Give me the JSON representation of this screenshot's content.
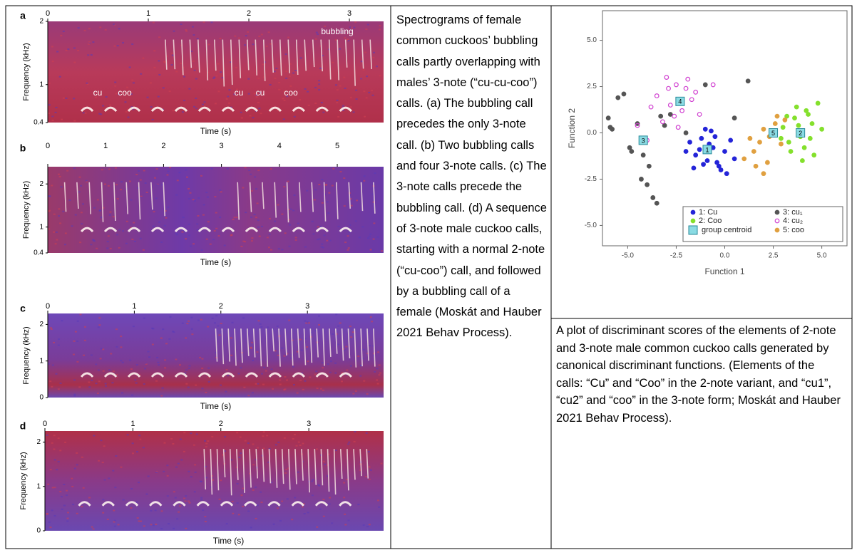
{
  "panels": [
    {
      "label": "a",
      "ylabel": "Frequency (kHz)",
      "xlabel": "Time (s)",
      "xlim": [
        0,
        3.34
      ],
      "xticks": [
        0,
        1,
        2,
        3
      ],
      "ylim": [
        0.4,
        2
      ],
      "yticks": [
        2,
        1,
        0.4
      ],
      "annotations": [
        "cu",
        "coo",
        "cu",
        "cu",
        "coo",
        "bubbling"
      ]
    },
    {
      "label": "b",
      "ylabel": "Frequency (kHz)",
      "xlabel": "Time (s)",
      "xlim": [
        0,
        5.8
      ],
      "xticks": [
        0,
        1,
        2,
        3,
        4,
        5
      ],
      "ylim": [
        0.4,
        2.4
      ],
      "yticks": [
        2,
        1,
        0.4
      ]
    },
    {
      "label": "c",
      "ylabel": "Frequency (kHz)",
      "xlabel": "Time (s)",
      "xlim": [
        0,
        3.88
      ],
      "xticks": [
        0,
        1,
        2,
        3
      ],
      "ylim": [
        0,
        2.3
      ],
      "yticks": [
        2,
        1,
        0
      ]
    },
    {
      "label": "d",
      "ylabel": "Frequency (kHz)",
      "xlabel": "Time (s)",
      "xlim": [
        0,
        3.85
      ],
      "xticks": [
        0,
        1,
        2,
        3
      ],
      "ylim": [
        0,
        2.25
      ],
      "yticks": [
        2,
        1,
        0
      ]
    }
  ],
  "caption_left": "Spectrograms of female common cuckoos’ bubbling calls partly overlapping with males’ 3-note (“cu-cu-coo”) calls. (a) The bubbling call precedes the only 3-note call. (b) Two bubbling calls and four 3-note calls. (c) The 3-note calls precede the bubbling call. (d) A sequence of 3-note male cuckoo calls, starting with a normal 2-note (“cu-coo”) call, and followed by a bubbling call of a female (Moskát and Hauber 2021 Behav Process).",
  "scatter": {
    "type": "scatter",
    "xlabel": "Function 1",
    "ylabel": "Function 2",
    "xlim": [
      -6.3,
      6.3
    ],
    "ylim": [
      -6.1,
      6.6
    ],
    "xticks": [
      {
        "value": -5,
        "label": "-5.0"
      },
      -2.5,
      {
        "value": 0,
        "label": "0.0"
      },
      2.5,
      {
        "value": 5,
        "label": "5.0"
      }
    ],
    "yticks": [
      {
        "value": 5,
        "label": "5.0"
      },
      2.5,
      {
        "value": 0,
        "label": "0.0"
      },
      -2.5,
      {
        "value": -5,
        "label": "-5.0"
      }
    ],
    "series": [
      {
        "name": "1: Cu",
        "color": "#2424d8",
        "filled": true,
        "x": [
          -1.8,
          -1.5,
          -1.2,
          -0.9,
          -0.6,
          -0.3,
          0.0,
          0.3,
          -1.6,
          -1.0,
          -0.5,
          -0.2,
          -1.3,
          -0.8,
          0.5,
          -2.0,
          -0.4,
          0.1,
          -1.1,
          -0.7
        ],
        "values": [
          -0.5,
          -1.2,
          -0.3,
          -1.5,
          -0.8,
          -1.8,
          -1.0,
          -0.4,
          -1.9,
          0.2,
          -0.2,
          -2.0,
          -0.9,
          -0.6,
          -1.4,
          -1.0,
          -1.6,
          -2.2,
          -1.7,
          0.1
        ]
      },
      {
        "name": "2: Coo",
        "color": "#84e02c",
        "filled": true,
        "x": [
          3.0,
          3.3,
          3.6,
          3.9,
          4.2,
          4.5,
          4.8,
          3.4,
          3.8,
          4.1,
          4.4,
          3.2,
          4.6,
          5.0,
          3.7,
          4.3,
          2.9,
          4.0
        ],
        "values": [
          0.3,
          -0.5,
          0.8,
          -0.2,
          1.2,
          0.5,
          1.6,
          -1.0,
          0.4,
          -0.8,
          -0.3,
          0.9,
          -1.2,
          0.2,
          1.4,
          1.0,
          -0.3,
          -1.5
        ]
      },
      {
        "name": "3: cu₁",
        "color": "#555555",
        "filled": true,
        "x": [
          -6.0,
          -5.8,
          -5.5,
          -5.2,
          -4.9,
          -4.5,
          -4.2,
          -4.0,
          -3.7,
          -3.5,
          -3.3,
          -4.8,
          -5.9,
          -3.1,
          -2.8,
          -1.0,
          0.5,
          1.2,
          -2.0,
          -4.3,
          -3.9
        ],
        "values": [
          0.8,
          0.2,
          1.9,
          2.1,
          -0.8,
          0.5,
          -1.2,
          -2.8,
          -3.5,
          -3.8,
          0.9,
          -1.0,
          0.3,
          0.4,
          1.0,
          2.6,
          0.8,
          2.8,
          0.0,
          -2.5,
          -1.8
        ]
      },
      {
        "name": "4: cu₂",
        "color": "#d040d0",
        "filled": false,
        "x": [
          -3.5,
          -3.0,
          -2.8,
          -2.5,
          -2.2,
          -2.0,
          -1.7,
          -1.5,
          -3.2,
          -2.6,
          -1.9,
          -1.3,
          -3.8,
          -4.0,
          -2.4,
          -0.6,
          -4.5,
          -2.9
        ],
        "values": [
          2.0,
          3.0,
          1.5,
          2.6,
          1.2,
          2.4,
          1.8,
          2.2,
          0.6,
          0.9,
          2.9,
          1.0,
          1.4,
          -0.4,
          0.3,
          2.6,
          0.4,
          2.4
        ]
      },
      {
        "name": "5: coo",
        "color": "#e0a040",
        "filled": true,
        "x": [
          1.5,
          1.8,
          2.0,
          2.3,
          2.6,
          2.9,
          1.6,
          2.2,
          2.7,
          3.1,
          1.3,
          2.0,
          2.5,
          1.0
        ],
        "values": [
          -1.0,
          -0.5,
          0.2,
          -0.2,
          0.5,
          -0.6,
          -1.8,
          -1.6,
          0.9,
          0.7,
          -0.3,
          -2.2,
          0.0,
          -1.4
        ]
      }
    ],
    "centroid_label": "group centroid",
    "centroid_color": "#8adbe3",
    "centroids": [
      {
        "label": "1",
        "x": -0.9,
        "y": -0.9
      },
      {
        "label": "2",
        "x": 3.9,
        "y": 0.0
      },
      {
        "label": "3",
        "x": -4.2,
        "y": -0.4
      },
      {
        "label": "4",
        "x": -2.3,
        "y": 1.7
      },
      {
        "label": "5",
        "x": 2.5,
        "y": 0.0
      }
    ]
  },
  "caption_right": "A plot of discriminant scores of the elements of 2-note and 3-note male common cuckoo calls generated by canonical discriminant functions. (Elements of the calls: “Cu” and “Coo” in the 2-note variant, and “cu1”, “cu2” and “coo” in the 3-note form; Moskát and Hauber 2021 Behav Process)."
}
